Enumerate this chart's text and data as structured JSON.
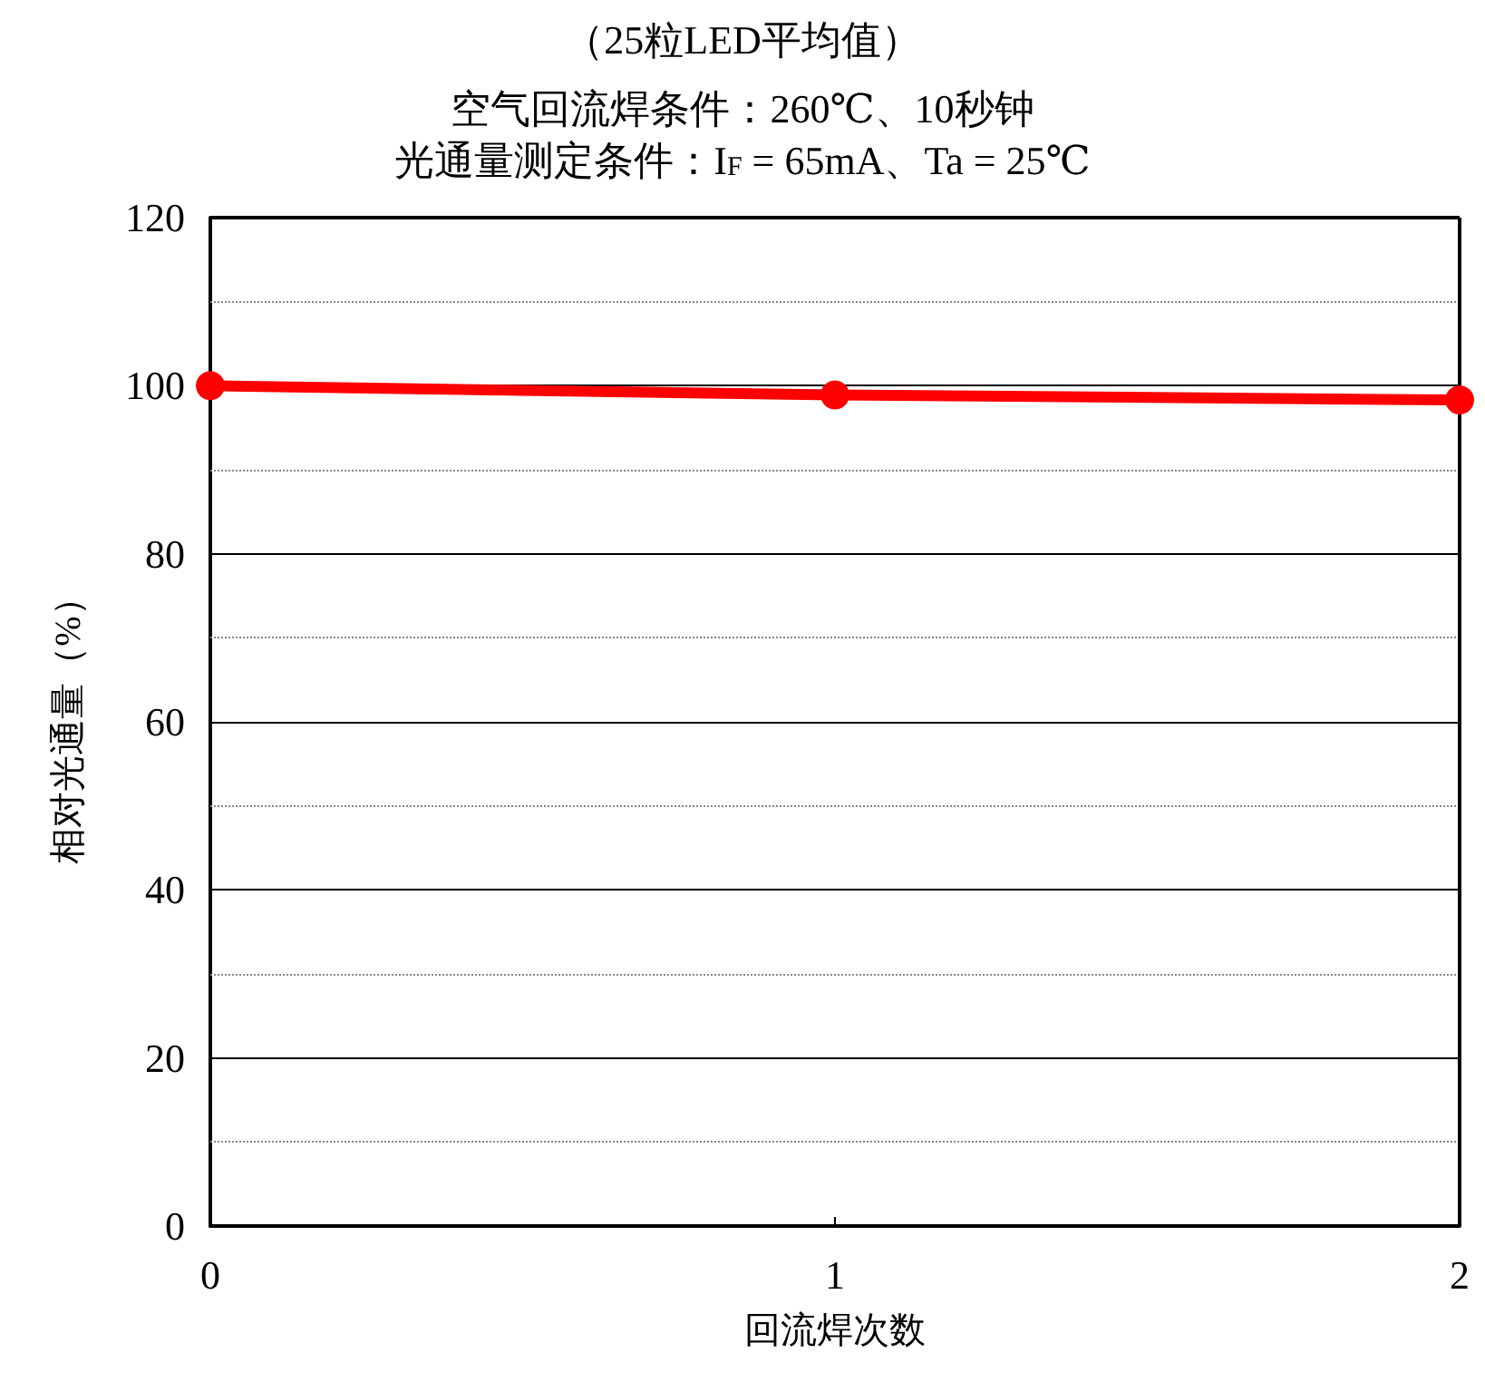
{
  "chart_data": {
    "type": "line",
    "title": "（25粒LED平均值）",
    "subtitle": "空气回流焊条件：260℃、10秒钟",
    "annotations": [
      "光通量测定条件：I$_{F}$ = 65mA、Ta = 25℃"
    ],
    "xlabel": "回流焊次数",
    "ylabel": "相对光通量（%）",
    "x": [
      0,
      1,
      2
    ],
    "series": [
      {
        "color": "#ff0000",
        "values": [
          100,
          98.9,
          98.3
        ]
      }
    ],
    "xlim": [
      0,
      2
    ],
    "xticks": [
      0,
      1,
      2
    ],
    "ylim": [
      0,
      120
    ],
    "yticks": [
      0,
      {
        "value": 10,
        "label": null
      },
      20,
      {
        "value": 30,
        "label": null
      },
      40,
      {
        "value": 50,
        "label": null
      },
      60,
      {
        "value": 70,
        "label": null
      },
      80,
      {
        "value": 90,
        "label": null
      },
      100,
      {
        "value": 110,
        "label": null
      },
      120
    ],
    "grid": "y",
    "marker": "circle"
  }
}
